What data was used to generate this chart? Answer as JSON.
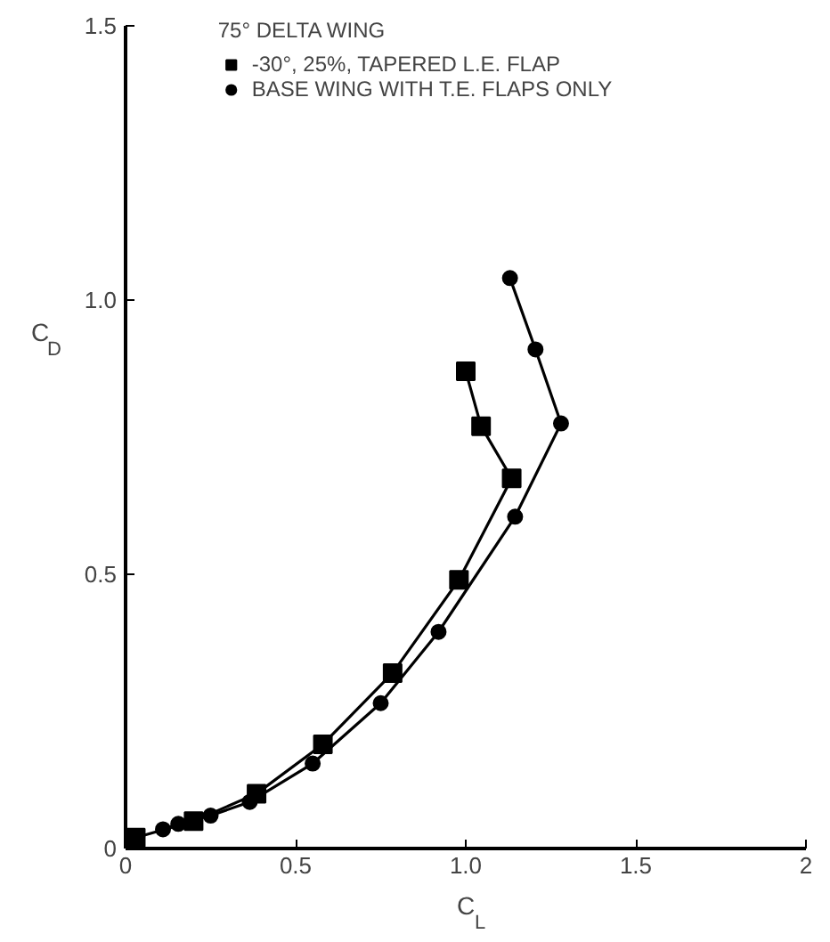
{
  "chart_data": {
    "type": "line",
    "legend_title": "75° DELTA WING",
    "xlabel": "C$_{L}$",
    "ylabel": "C$_{D}$",
    "xlim": [
      0,
      2
    ],
    "xticks": [
      0,
      {
        "value": 0.5,
        "label": "0.5"
      },
      {
        "value": 1.0,
        "label": "1.0"
      },
      {
        "value": 1.5,
        "label": "1.5"
      },
      2
    ],
    "ylim": [
      0,
      1.5
    ],
    "yticks": [
      0,
      {
        "value": 0.5,
        "label": "0.5"
      },
      {
        "value": 1.0,
        "label": "1.0"
      },
      {
        "value": 1.5,
        "label": "1.5"
      }
    ],
    "grid": false,
    "legend": "top",
    "series": [
      {
        "name": "-30°, 25%, TAPERED L.E. FLAP",
        "color": "#000000",
        "marker": "square",
        "x": [
          0.03,
          0.2,
          0.385,
          0.58,
          0.785,
          0.98,
          1.135,
          1.045,
          1.0
        ],
        "values": [
          0.02,
          0.05,
          0.1,
          0.19,
          0.32,
          0.49,
          0.675,
          0.77,
          0.87
        ]
      },
      {
        "name": "BASE WING WITH T.E. FLAPS ONLY",
        "color": "#000000",
        "marker": "circle",
        "x": [
          0.11,
          0.155,
          0.25,
          0.365,
          0.55,
          0.75,
          0.92,
          1.145,
          1.28,
          1.205,
          1.13
        ],
        "values": [
          0.035,
          0.045,
          0.06,
          0.085,
          0.155,
          0.265,
          0.395,
          0.605,
          0.775,
          0.91,
          1.04
        ]
      }
    ]
  }
}
